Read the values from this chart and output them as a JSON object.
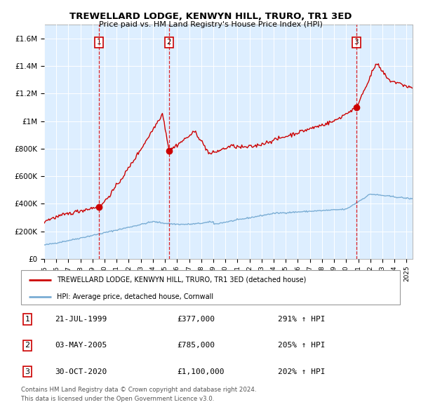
{
  "title": "TREWELLARD LODGE, KENWYN HILL, TRURO, TR1 3ED",
  "subtitle": "Price paid vs. HM Land Registry's House Price Index (HPI)",
  "property_label": "TREWELLARD LODGE, KENWYN HILL, TRURO, TR1 3ED (detached house)",
  "hpi_label": "HPI: Average price, detached house, Cornwall",
  "property_color": "#cc0000",
  "hpi_color": "#7aadd4",
  "background_color": "#ddeeff",
  "sale_years": [
    1999.55,
    2005.33,
    2020.83
  ],
  "sale_prices": [
    377000,
    785000,
    1100000
  ],
  "sale_labels": [
    "1",
    "2",
    "3"
  ],
  "sale_info": [
    {
      "label": "1",
      "date": "21-JUL-1999",
      "price": "£377,000",
      "pct": "291% ↑ HPI"
    },
    {
      "label": "2",
      "date": "03-MAY-2005",
      "price": "£785,000",
      "pct": "205% ↑ HPI"
    },
    {
      "label": "3",
      "date": "30-OCT-2020",
      "price": "£1,100,000",
      "pct": "202% ↑ HPI"
    }
  ],
  "footer": [
    "Contains HM Land Registry data © Crown copyright and database right 2024.",
    "This data is licensed under the Open Government Licence v3.0."
  ],
  "ylim": [
    0,
    1700000
  ],
  "yticks": [
    0,
    200000,
    400000,
    600000,
    800000,
    1000000,
    1200000,
    1400000,
    1600000
  ],
  "ytick_labels": [
    "£0",
    "£200K",
    "£400K",
    "£600K",
    "£800K",
    "£1M",
    "£1.2M",
    "£1.4M",
    "£1.6M"
  ],
  "xmin": 1995,
  "xmax": 2025.5
}
